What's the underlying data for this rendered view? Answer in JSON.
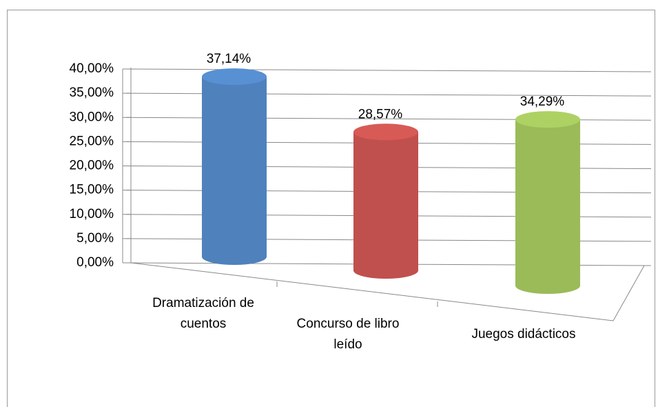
{
  "chart_data": {
    "type": "bar3d",
    "categories": [
      "Dramatización de cuentos",
      "Concurso de libro leído",
      "Juegos didácticos"
    ],
    "values": [
      37.14,
      28.57,
      34.29
    ],
    "value_labels": [
      "37,14%",
      "28,57%",
      "34,29%"
    ],
    "colors": [
      "#4f81bd",
      "#c0504d",
      "#9bbb59"
    ],
    "ylim": [
      0,
      40
    ],
    "yticks": [
      {
        "value": 0,
        "label": "0,00%"
      },
      {
        "value": 5,
        "label": "5,00%"
      },
      {
        "value": 10,
        "label": "10,00%"
      },
      {
        "value": 15,
        "label": "15,00%"
      },
      {
        "value": 20,
        "label": "20,00%"
      },
      {
        "value": 25,
        "label": "25,00%"
      },
      {
        "value": 30,
        "label": "30,00%"
      },
      {
        "value": 35,
        "label": "35,00%"
      },
      {
        "value": 40,
        "label": "40,00%"
      }
    ],
    "grid": true
  }
}
